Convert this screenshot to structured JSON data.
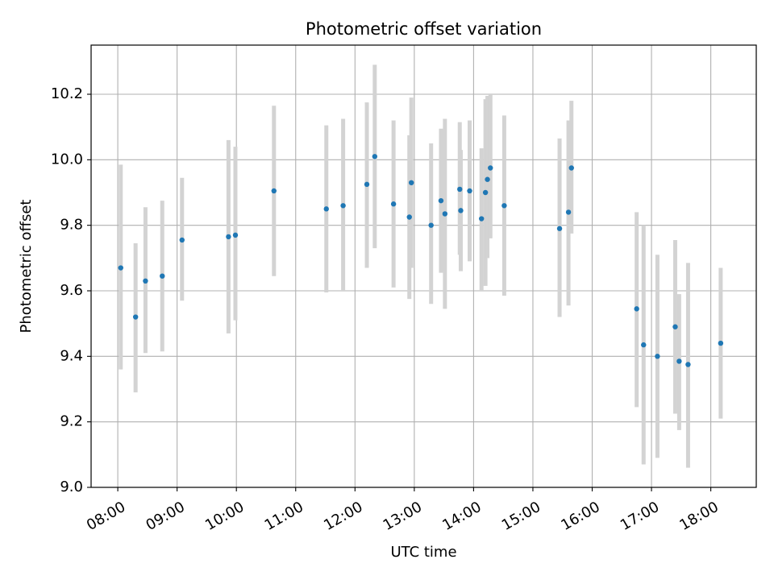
{
  "chart_data": {
    "type": "scatter",
    "title": "Photometric offset variation",
    "xlabel": "UTC time",
    "ylabel": "Photometric offset",
    "xlim": [
      "07:33",
      "18:46"
    ],
    "ylim": [
      9.0,
      10.35
    ],
    "x_ticks": [
      "08:00",
      "09:00",
      "10:00",
      "11:00",
      "12:00",
      "13:00",
      "14:00",
      "15:00",
      "16:00",
      "17:00",
      "18:00"
    ],
    "y_ticks": [
      "9.0",
      "9.2",
      "9.4",
      "9.6",
      "9.8",
      "10.0",
      "10.2"
    ],
    "grid": true,
    "colors": {
      "point": "#1f77b4",
      "errorbar": "#d3d3d3",
      "grid": "#b0b0b0"
    },
    "points": [
      {
        "x": "08:03",
        "y": 9.67,
        "err_low": 9.36,
        "err_high": 9.985
      },
      {
        "x": "08:18",
        "y": 9.52,
        "err_low": 9.29,
        "err_high": 9.745
      },
      {
        "x": "08:28",
        "y": 9.63,
        "err_low": 9.41,
        "err_high": 9.855
      },
      {
        "x": "08:45",
        "y": 9.645,
        "err_low": 9.415,
        "err_high": 9.875
      },
      {
        "x": "09:05",
        "y": 9.755,
        "err_low": 9.57,
        "err_high": 9.945
      },
      {
        "x": "09:52",
        "y": 9.765,
        "err_low": 9.47,
        "err_high": 10.06
      },
      {
        "x": "09:59",
        "y": 9.77,
        "err_low": 9.51,
        "err_high": 10.04
      },
      {
        "x": "10:38",
        "y": 9.905,
        "err_low": 9.645,
        "err_high": 10.165
      },
      {
        "x": "11:31",
        "y": 9.85,
        "err_low": 9.595,
        "err_high": 10.105
      },
      {
        "x": "11:48",
        "y": 9.86,
        "err_low": 9.6,
        "err_high": 10.125
      },
      {
        "x": "12:12",
        "y": 9.925,
        "err_low": 9.67,
        "err_high": 10.175
      },
      {
        "x": "12:20",
        "y": 10.01,
        "err_low": 9.73,
        "err_high": 10.29
      },
      {
        "x": "12:39",
        "y": 9.865,
        "err_low": 9.61,
        "err_high": 10.12
      },
      {
        "x": "12:55",
        "y": 9.825,
        "err_low": 9.575,
        "err_high": 10.075
      },
      {
        "x": "12:57",
        "y": 9.93,
        "err_low": 9.67,
        "err_high": 10.19
      },
      {
        "x": "13:17",
        "y": 9.8,
        "err_low": 9.56,
        "err_high": 10.05
      },
      {
        "x": "13:27",
        "y": 9.875,
        "err_low": 9.655,
        "err_high": 10.095
      },
      {
        "x": "13:31",
        "y": 9.835,
        "err_low": 9.545,
        "err_high": 10.125
      },
      {
        "x": "13:46",
        "y": 9.91,
        "err_low": 9.71,
        "err_high": 10.115
      },
      {
        "x": "13:47",
        "y": 9.845,
        "err_low": 9.66,
        "err_high": 10.03
      },
      {
        "x": "13:56",
        "y": 9.905,
        "err_low": 9.69,
        "err_high": 10.12
      },
      {
        "x": "14:08",
        "y": 9.82,
        "err_low": 9.6,
        "err_high": 10.035
      },
      {
        "x": "14:12",
        "y": 9.9,
        "err_low": 9.615,
        "err_high": 10.185
      },
      {
        "x": "14:14",
        "y": 9.94,
        "err_low": 9.7,
        "err_high": 10.195
      },
      {
        "x": "14:17",
        "y": 9.975,
        "err_low": 9.76,
        "err_high": 10.2
      },
      {
        "x": "14:31",
        "y": 9.86,
        "err_low": 9.585,
        "err_high": 10.135
      },
      {
        "x": "15:27",
        "y": 9.79,
        "err_low": 9.52,
        "err_high": 10.065
      },
      {
        "x": "15:36",
        "y": 9.84,
        "err_low": 9.555,
        "err_high": 10.12
      },
      {
        "x": "15:39",
        "y": 9.975,
        "err_low": 9.775,
        "err_high": 10.18
      },
      {
        "x": "16:45",
        "y": 9.545,
        "err_low": 9.245,
        "err_high": 9.84
      },
      {
        "x": "16:52",
        "y": 9.435,
        "err_low": 9.07,
        "err_high": 9.8
      },
      {
        "x": "17:06",
        "y": 9.4,
        "err_low": 9.09,
        "err_high": 9.71
      },
      {
        "x": "17:24",
        "y": 9.49,
        "err_low": 9.225,
        "err_high": 9.755
      },
      {
        "x": "17:28",
        "y": 9.385,
        "err_low": 9.175,
        "err_high": 9.59
      },
      {
        "x": "17:37",
        "y": 9.375,
        "err_low": 9.06,
        "err_high": 9.685
      },
      {
        "x": "18:10",
        "y": 9.44,
        "err_low": 9.21,
        "err_high": 9.67
      }
    ]
  }
}
